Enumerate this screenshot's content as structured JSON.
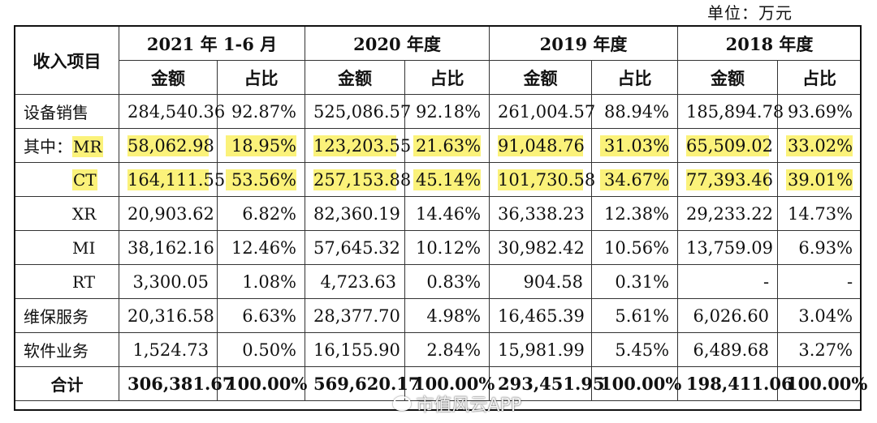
{
  "unit_label": "单位：万元",
  "header": {
    "row_label": "收入项目",
    "periods": [
      "2021 年 1-6 月",
      "2020 年度",
      "2019 年度",
      "2018 年度"
    ],
    "amount_label": "金额",
    "ratio_label": "占比"
  },
  "rows": [
    {
      "label": "设备销售",
      "cells": [
        "284,540.36",
        "92.87%",
        "525,086.57",
        "92.18%",
        "261,004.57",
        "88.94%",
        "185,894.78",
        "93.69%"
      ]
    },
    {
      "label_prefix": "其中：",
      "label": "MR",
      "cells": [
        "58,062.98",
        "18.95%",
        "123,203.55",
        "21.63%",
        "91,048.76",
        "31.03%",
        "65,509.02",
        "33.02%"
      ]
    },
    {
      "label": "CT",
      "cells": [
        "164,111.55",
        "53.56%",
        "257,153.88",
        "45.14%",
        "101,730.58",
        "34.67%",
        "77,393.46",
        "39.01%"
      ]
    },
    {
      "label": "XR",
      "cells": [
        "20,903.62",
        "6.82%",
        "82,360.19",
        "14.46%",
        "36,338.23",
        "12.38%",
        "29,233.22",
        "14.73%"
      ]
    },
    {
      "label": "MI",
      "cells": [
        "38,162.16",
        "12.46%",
        "57,645.32",
        "10.12%",
        "30,982.42",
        "10.56%",
        "13,759.09",
        "6.93%"
      ]
    },
    {
      "label": "RT",
      "cells": [
        "3,300.05",
        "1.08%",
        "4,723.63",
        "0.83%",
        "904.58",
        "0.31%",
        "-",
        "-"
      ]
    },
    {
      "label": "维保服务",
      "cells": [
        "20,316.58",
        "6.63%",
        "28,377.70",
        "4.98%",
        "16,465.39",
        "5.61%",
        "6,026.60",
        "3.04%"
      ]
    },
    {
      "label": "软件业务",
      "cells": [
        "1,524.73",
        "0.50%",
        "16,155.90",
        "2.84%",
        "15,981.99",
        "5.45%",
        "6,489.68",
        "3.27%"
      ]
    },
    {
      "label": "合计",
      "cells": [
        "306,381.67",
        "100.00%",
        "569,620.17",
        "100.00%",
        "293,451.95",
        "100.00%",
        "198,411.06",
        "100.00%"
      ]
    }
  ],
  "watermark": "市值风云APP",
  "highlight_color": "#fbf27a"
}
